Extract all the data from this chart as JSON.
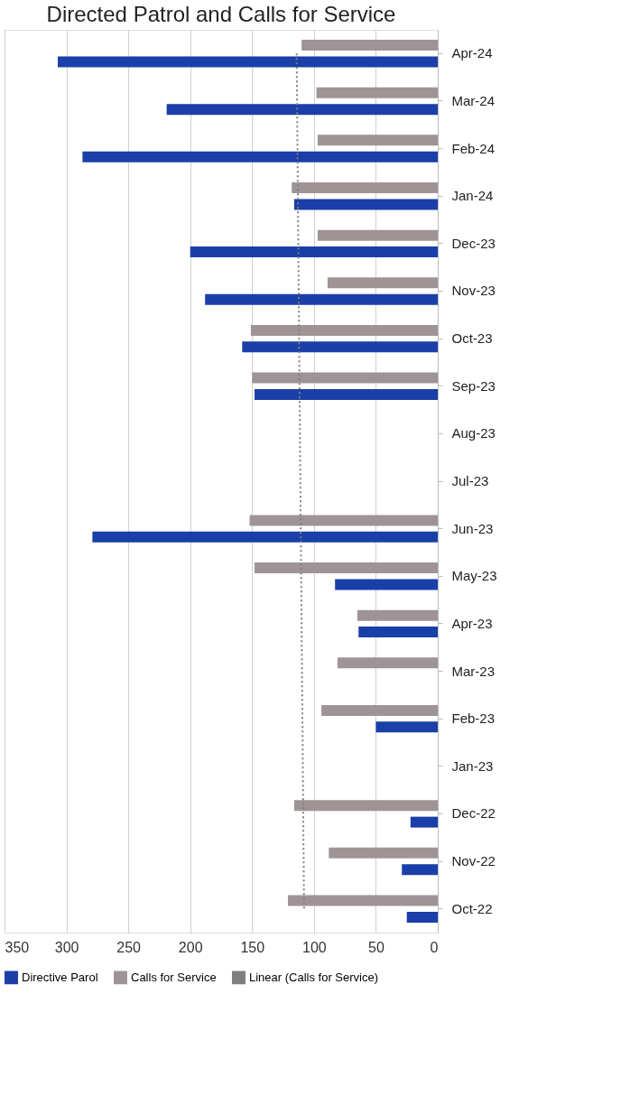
{
  "chart_data": {
    "type": "bar",
    "orientation": "horizontal",
    "title": "Directed Patrol and Calls for Service",
    "categories": [
      "Apr-24",
      "Mar-24",
      "Feb-24",
      "Jan-24",
      "Dec-23",
      "Nov-23",
      "Oct-23",
      "Sep-23",
      "Aug-23",
      "Jul-23",
      "Jun-23",
      "May-23",
      "Apr-23",
      "Mar-23",
      "Feb-23",
      "Jan-23",
      "Dec-22",
      "Nov-22",
      "Oct-22"
    ],
    "series": [
      {
        "name": "Directive Parol",
        "color": "#1a3fa8",
        "values": [
          307,
          219,
          287,
          116,
          200,
          188,
          158,
          148,
          null,
          null,
          279,
          83,
          64,
          null,
          50,
          null,
          22,
          29,
          25
        ]
      },
      {
        "name": "Calls for Service",
        "color": "#9e9496",
        "values": [
          110,
          98,
          97,
          118,
          97,
          89,
          151,
          150,
          null,
          null,
          152,
          148,
          65,
          81,
          94,
          null,
          116,
          88,
          121
        ]
      },
      {
        "name": "Linear (Calls for Service)",
        "type": "line",
        "line_style": "dotted",
        "color": "#7f7f7f",
        "x": [
          "Apr-24",
          "Oct-22"
        ],
        "values": [
          114,
          108
        ]
      }
    ],
    "xlim": [
      350,
      0
    ],
    "xticks": [
      0,
      50,
      100,
      150,
      200,
      250,
      300,
      350
    ],
    "grid": "x",
    "legend": "bottom"
  }
}
